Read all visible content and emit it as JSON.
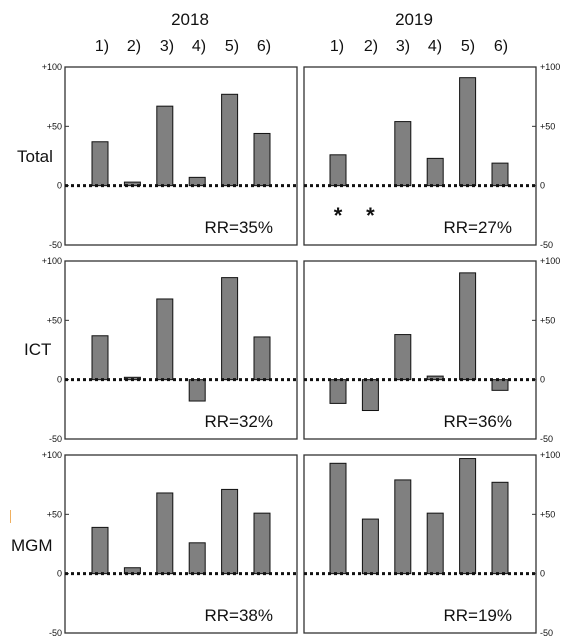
{
  "headers": {
    "left": "2018",
    "right": "2019"
  },
  "row_labels": [
    "Total",
    "ICT",
    "MGM"
  ],
  "chart_data": {
    "type": "bar",
    "categories": [
      "1)",
      "2)",
      "3)",
      "4)",
      "5)",
      "6)"
    ],
    "y_ticks": [
      "+100",
      "+50",
      "0",
      "-50"
    ],
    "ylim": [
      -50,
      100
    ],
    "colors": {
      "bar": "#808080",
      "bar_stroke": "#111111",
      "frame": "#333333"
    },
    "panels": [
      {
        "year": "2018",
        "row": "Total",
        "values": [
          37,
          3,
          67,
          7,
          77,
          44
        ],
        "rr": "RR=35%",
        "markers": []
      },
      {
        "year": "2019",
        "row": "Total",
        "values": [
          26,
          0,
          54,
          23,
          91,
          19
        ],
        "rr": "RR=27%",
        "markers": [
          "*",
          "*",
          "",
          "",
          "",
          ""
        ]
      },
      {
        "year": "2018",
        "row": "ICT",
        "values": [
          37,
          2,
          68,
          -18,
          86,
          36
        ],
        "rr": "RR=32%",
        "markers": []
      },
      {
        "year": "2019",
        "row": "ICT",
        "values": [
          -20,
          -26,
          38,
          3,
          90,
          -9
        ],
        "rr": "RR=36%",
        "markers": []
      },
      {
        "year": "2018",
        "row": "MGM",
        "values": [
          39,
          5,
          68,
          26,
          71,
          51
        ],
        "rr": "RR=38%",
        "markers": []
      },
      {
        "year": "2019",
        "row": "MGM",
        "values": [
          93,
          46,
          79,
          51,
          97,
          77
        ],
        "rr": "RR=19%",
        "markers": []
      }
    ]
  }
}
